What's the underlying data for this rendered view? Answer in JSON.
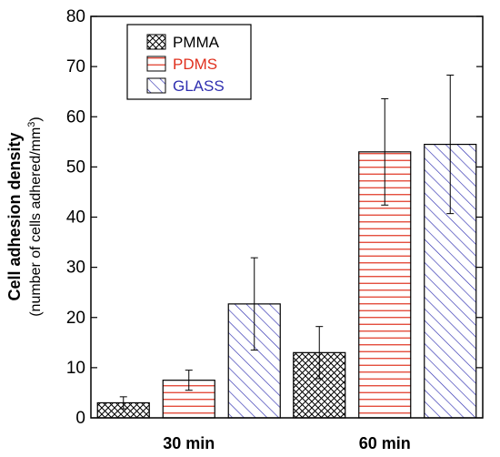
{
  "colors": {
    "PMMA": "#000000",
    "PDMS": "#e0301e",
    "GLASS": "#2f2fb0"
  },
  "chart_data": {
    "type": "bar",
    "categories": [
      "30 min",
      "60 min"
    ],
    "series": [
      {
        "name": "PMMA",
        "values": [
          3,
          13
        ],
        "errors": [
          1.2,
          5.2
        ],
        "pattern": "crosshatch"
      },
      {
        "name": "PDMS",
        "values": [
          7.5,
          53
        ],
        "errors": [
          2.0,
          10.6
        ],
        "pattern": "horizontal-lines"
      },
      {
        "name": "GLASS",
        "values": [
          22.7,
          54.5
        ],
        "errors": [
          9.2,
          13.8
        ],
        "pattern": "diagonal-lines"
      }
    ],
    "ylabel": "Cell adhesion density",
    "ylabel_sub_prefix": "(number of cells adhered/mm",
    "ylabel_sub_sup": "3",
    "ylabel_sub_suffix": ")",
    "ylim": [
      0,
      80
    ],
    "yticks": [
      "0",
      "10",
      "20",
      "30",
      "40",
      "50",
      "60",
      "70",
      "80"
    ],
    "legend_position": "top-left",
    "grid": false
  }
}
